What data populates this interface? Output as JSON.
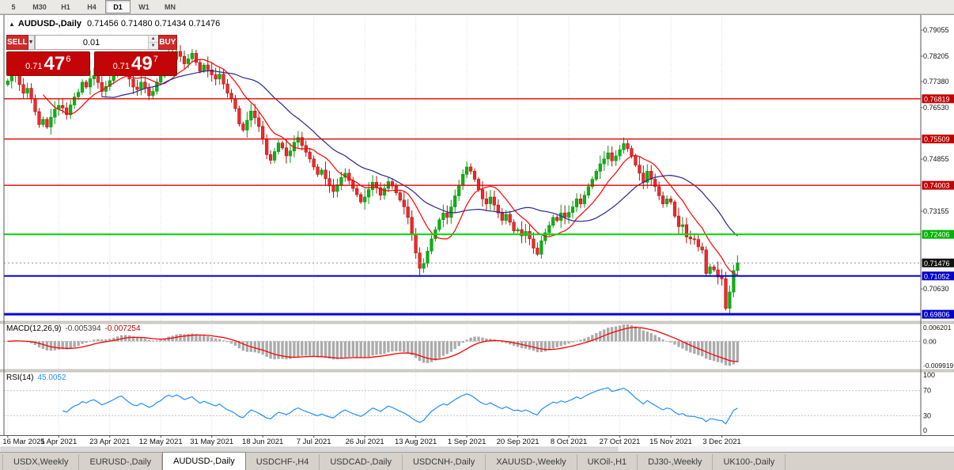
{
  "toolbar": {
    "timeframes": [
      {
        "label": "5",
        "active": false
      },
      {
        "label": "M30",
        "active": false
      },
      {
        "label": "H1",
        "active": false
      },
      {
        "label": "H4",
        "active": false
      },
      {
        "label": "D1",
        "active": true
      },
      {
        "label": "W1",
        "active": false
      },
      {
        "label": "MN",
        "active": false
      }
    ]
  },
  "chart": {
    "collapse_arrow": "▲",
    "symbol_title": "AUDUSD-,Daily",
    "ohlc_text": "0.71456 0.71480 0.71434 0.71476"
  },
  "trade_panel": {
    "sell_label": "SELL",
    "buy_label": "BUY",
    "lot": "0.01",
    "sell_price_small": "0.71",
    "sell_price_big": "47",
    "sell_price_sup": "6",
    "buy_price_small": "0.71",
    "buy_price_big": "49",
    "buy_price_sup": "7"
  },
  "tabs": {
    "items": [
      "USDX,Weekly",
      "EURUSD-,Daily",
      "AUDUSD-,Daily",
      "USDCHF-,H4",
      "USDCAD-,Daily",
      "USDCNH-,Daily",
      "XAUUSD-,Weekly",
      "UKOil-,H1",
      "DJ30-,Weekly",
      "UK100-,Daily"
    ],
    "active_index": 2
  },
  "chart_data": {
    "type": "candlestick",
    "symbol": "AUDUSD-,Daily",
    "ohlc_current": {
      "open": 0.71456,
      "high": 0.7148,
      "low": 0.71434,
      "close": 0.71476
    },
    "ylim": [
      0.69578,
      0.7957
    ],
    "dates": [
      "16 Mar 2021",
      "5 Apr 2021",
      "23 Apr 2021",
      "12 May 2021",
      "31 May 2021",
      "18 Jun 2021",
      "7 Jul 2021",
      "26 Jul 2021",
      "13 Aug 2021",
      "1 Sep 2021",
      "20 Sep 2021",
      "8 Oct 2021",
      "27 Oct 2021",
      "15 Nov 2021",
      "3 Dec 2021"
    ],
    "label_every": 13,
    "closes": [
      0.774,
      0.7758,
      0.7776,
      0.7728,
      0.77,
      0.7716,
      0.7682,
      0.764,
      0.7598,
      0.7615,
      0.759,
      0.7622,
      0.7648,
      0.766,
      0.7652,
      0.763,
      0.7662,
      0.7688,
      0.7703,
      0.7736,
      0.772,
      0.7747,
      0.7758,
      0.7735,
      0.7706,
      0.7722,
      0.7741,
      0.7762,
      0.779,
      0.7806,
      0.7776,
      0.7746,
      0.772,
      0.7712,
      0.7736,
      0.7716,
      0.7692,
      0.7706,
      0.7736,
      0.7756,
      0.78,
      0.7824,
      0.781,
      0.7836,
      0.782,
      0.7796,
      0.7812,
      0.783,
      0.78,
      0.7772,
      0.7792,
      0.7776,
      0.776,
      0.7746,
      0.7762,
      0.773,
      0.77,
      0.7682,
      0.765,
      0.76,
      0.758,
      0.7612,
      0.7642,
      0.762,
      0.7592,
      0.755,
      0.75,
      0.7482,
      0.751,
      0.7538,
      0.7522,
      0.7496,
      0.7512,
      0.754,
      0.7556,
      0.753,
      0.7508,
      0.7486,
      0.746,
      0.7436,
      0.745,
      0.7422,
      0.7398,
      0.738,
      0.7402,
      0.7426,
      0.744,
      0.7416,
      0.739,
      0.737,
      0.7346,
      0.7362,
      0.7386,
      0.741,
      0.7392,
      0.7368,
      0.739,
      0.7412,
      0.7398,
      0.7376,
      0.7352,
      0.733,
      0.7296,
      0.724,
      0.718,
      0.713,
      0.7146,
      0.7186,
      0.7226,
      0.7256,
      0.7288,
      0.731,
      0.7296,
      0.733,
      0.7366,
      0.74,
      0.7436,
      0.746,
      0.7446,
      0.742,
      0.7386,
      0.7356,
      0.734,
      0.7362,
      0.7336,
      0.731,
      0.7286,
      0.7306,
      0.728,
      0.7252,
      0.7256,
      0.7236,
      0.725,
      0.7226,
      0.7196,
      0.7176,
      0.722,
      0.7246,
      0.727,
      0.7296,
      0.7286,
      0.731,
      0.7296,
      0.7312,
      0.733,
      0.7356,
      0.734,
      0.7368,
      0.7396,
      0.742,
      0.7446,
      0.747,
      0.7486,
      0.7506,
      0.748,
      0.7496,
      0.7516,
      0.7536,
      0.752,
      0.7496,
      0.7466,
      0.744,
      0.741,
      0.7446,
      0.742,
      0.7396,
      0.7366,
      0.734,
      0.7356,
      0.7346,
      0.73,
      0.7266,
      0.7272,
      0.7232,
      0.7226,
      0.7224,
      0.72,
      0.719,
      0.7113,
      0.7135,
      0.7125,
      0.7102,
      0.7096,
      0.7,
      0.7053,
      0.7123,
      0.7148
    ],
    "default_wick": 0.0016,
    "wick_overrides": {
      "2": {
        "high": 0.7805
      },
      "43": {
        "high": 0.7852
      },
      "105": {
        "low": 0.7106
      },
      "117": {
        "high": 0.7478
      },
      "135": {
        "low": 0.717
      },
      "157": {
        "high": 0.7556
      },
      "183": {
        "low": 0.6993
      },
      "186": {
        "high": 0.7172
      }
    },
    "up_color": "#0a9a0a",
    "up_fill": "#12ae18",
    "down_color": "#b31212",
    "down_fill": "#ee2a2a",
    "axis_labels": [
      {
        "text": "0.79055",
        "price": 0.79055
      },
      {
        "text": "0.78205",
        "price": 0.78205
      },
      {
        "text": "0.77380",
        "price": 0.7738
      },
      {
        "text": "0.76530",
        "price": 0.7653
      },
      {
        "text": "0.74855",
        "price": 0.74855
      },
      {
        "text": "0.73155",
        "price": 0.73155
      },
      {
        "text": "0.70630",
        "price": 0.7063
      }
    ],
    "hlines": [
      {
        "price": 0.76819,
        "label": "0.76819",
        "color": "#e60000",
        "badge_bg": "#c40000",
        "width": 1.3
      },
      {
        "price": 0.75509,
        "label": "0.75509",
        "color": "#e60000",
        "badge_bg": "#c40000",
        "width": 1.3
      },
      {
        "price": 0.74003,
        "label": "0.74003",
        "color": "#e60000",
        "badge_bg": "#c40000",
        "width": 1.3
      },
      {
        "price": 0.72406,
        "label": "0.72406",
        "color": "#00dc00",
        "badge_bg": "#00b400",
        "width": 2
      },
      {
        "price": 0.71052,
        "label": "0.71052",
        "color": "#0000e6",
        "badge_bg": "#0000cc",
        "width": 2
      },
      {
        "price": 0.69806,
        "label": "0.69806",
        "color": "#0000e6",
        "badge_bg": "#0000cc",
        "width": 3
      }
    ],
    "current_price": {
      "price": 0.71476,
      "label": "0.71476",
      "badge_bg": "#111111"
    },
    "moving_averages": [
      {
        "period": 10,
        "color": "#ff0000"
      },
      {
        "period": 25,
        "color": "#26268e"
      }
    ],
    "macd": {
      "label": "MACD(12,26,9)",
      "value_main": "-0.005394",
      "value_signal": "-0.007254",
      "fast": 12,
      "slow": 26,
      "signal_period": 9,
      "ylim": [
        -0.009919,
        0.006201
      ],
      "scale_labels": [
        "0.006201",
        "0.00",
        "-0.009919"
      ],
      "hist_color": "#ababab",
      "signal_color": "#ff0000"
    },
    "rsi": {
      "label": "RSI(14)",
      "value": "45.0052",
      "period": 14,
      "levels": [
        100,
        70,
        30,
        0
      ],
      "level_lines": [
        70,
        30
      ],
      "line_color": "#1e90ff",
      "ylim": [
        0,
        100
      ]
    }
  }
}
